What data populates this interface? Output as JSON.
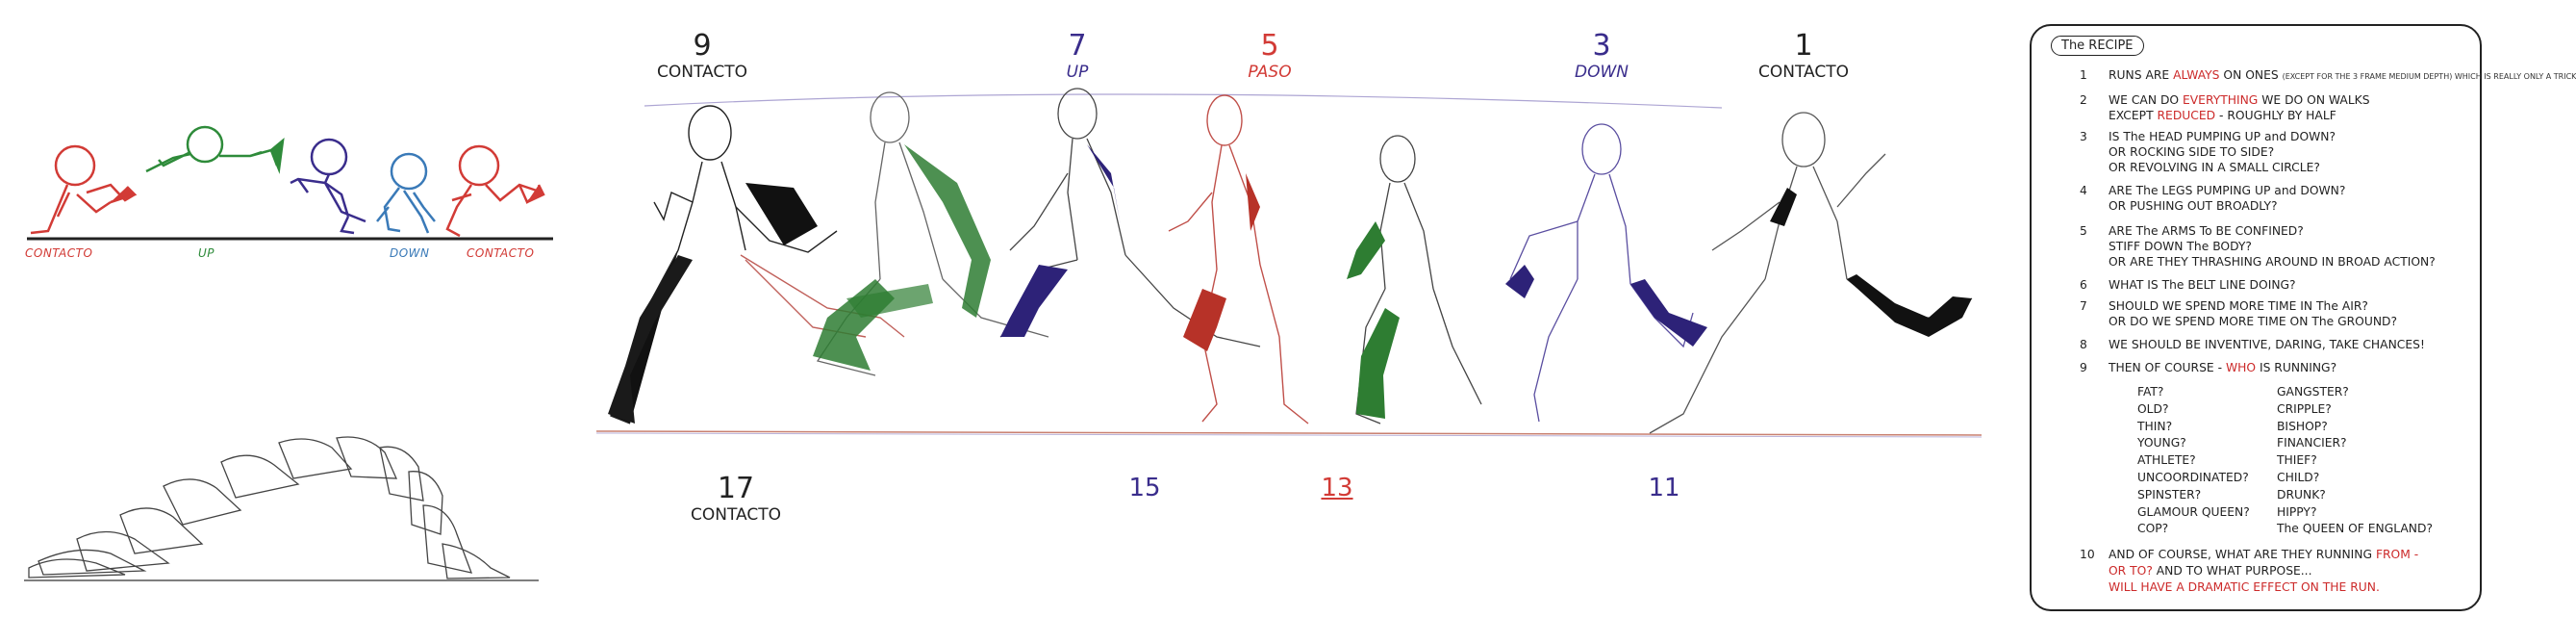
{
  "colors": {
    "ink": "#222222",
    "red": "#d23b36",
    "green": "#2e8b3a",
    "purple": "#3a2d8c",
    "blue": "#3a7ab8",
    "lavender": "#6a5fb0"
  },
  "top_left_strip": {
    "labels": [
      {
        "text": "CONTACTO",
        "color": "#d23b36"
      },
      {
        "text": "UP",
        "color": "#2e8b3a"
      },
      {
        "text": "DOWN",
        "color": "#3a7ab8"
      },
      {
        "text": "CONTACTO",
        "color": "#d23b36"
      }
    ]
  },
  "frames_top": [
    {
      "num": "9",
      "word": "CONTACTO",
      "color": "#222222"
    },
    {
      "num": "7",
      "word": "UP",
      "color": "#3a2d8c"
    },
    {
      "num": "5",
      "word": "PASO",
      "color": "#d23b36"
    },
    {
      "num": "3",
      "word": "DOWN",
      "color": "#3a2d8c"
    },
    {
      "num": "1",
      "word": "CONTACTO",
      "color": "#222222"
    }
  ],
  "frames_bottom": [
    {
      "num": "17",
      "word": "CONTACTO",
      "color": "#222222"
    },
    {
      "num": "15",
      "word": "",
      "color": "#3a2d8c"
    },
    {
      "num": "13",
      "word": "",
      "color": "#d23b36"
    },
    {
      "num": "11",
      "word": "",
      "color": "#3a2d8c"
    }
  ],
  "recipe": {
    "title": "The RECIPE",
    "items": [
      {
        "n": "1",
        "pre": "RUNS ARE ",
        "red": "ALWAYS",
        "post": " ON ONES",
        "note": "(EXCEPT FOR THE 3 FRAME MEDIUM DEPTH) WHICH IS REALLY ONLY A TRICK"
      },
      {
        "n": "2",
        "pre": "WE CAN DO ",
        "red": "EVERYTHING",
        "post": " WE DO ON WALKS"
      },
      {
        "n": "",
        "pre": "EXCEPT ",
        "red": "REDUCED",
        "post": " - ROUGHLY BY HALF"
      },
      {
        "n": "3",
        "pre": "IS The HEAD PUMPING UP and DOWN?"
      },
      {
        "n": "",
        "pre": "OR ROCKING SIDE TO SIDE?"
      },
      {
        "n": "",
        "pre": "OR REVOLVING IN A SMALL CIRCLE?"
      },
      {
        "n": "4",
        "pre": "ARE The LEGS PUMPING UP and DOWN?"
      },
      {
        "n": "",
        "pre": "OR PUSHING OUT BROADLY?"
      },
      {
        "n": "5",
        "pre": "ARE The ARMS To BE CONFINED?"
      },
      {
        "n": "",
        "pre": "STIFF DOWN The BODY?"
      },
      {
        "n": "",
        "pre": "OR ARE THEY THRASHING AROUND IN BROAD ACTION?"
      },
      {
        "n": "6",
        "pre": "WHAT IS The BELT LINE DOING?"
      },
      {
        "n": "7",
        "pre": "SHOULD WE SPEND MORE TIME IN The AIR?"
      },
      {
        "n": "",
        "pre": "OR DO WE SPEND MORE TIME ON The GROUND?"
      },
      {
        "n": "8",
        "pre": "WE SHOULD BE INVENTIVE, DARING, TAKE CHANCES!"
      },
      {
        "n": "9",
        "pre": "THEN OF COURSE - ",
        "red": "WHO",
        "post": " IS RUNNING?"
      }
    ],
    "who_left": [
      "FAT?",
      "OLD?",
      "THIN?",
      "YOUNG?",
      "ATHLETE?",
      "UNCOORDINATED?",
      "SPINSTER?",
      "GLAMOUR QUEEN?",
      "COP?"
    ],
    "who_right": [
      "GANGSTER?",
      "CRIPPLE?",
      "BISHOP?",
      "FINANCIER?",
      "THIEF?",
      "CHILD?",
      "DRUNK?",
      "HIPPY?",
      "The QUEEN OF ENGLAND?"
    ],
    "item10": {
      "n": "10",
      "pre": "AND OF COURSE, WHAT ARE THEY RUNNING ",
      "red1": "FROM -",
      "line2_red": "OR TO?",
      "line2_post": " AND TO WHAT PURPOSE...",
      "line3_red": "WILL HAVE A DRAMATIC EFFECT ON THE RUN."
    }
  }
}
